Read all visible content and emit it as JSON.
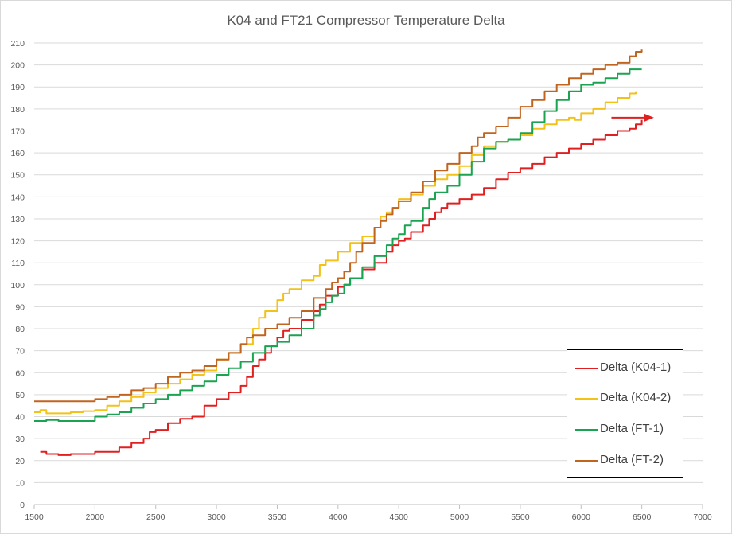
{
  "chart_data": {
    "type": "line",
    "title": "K04 and FT21 Compressor Temperature Delta",
    "xlabel": "",
    "ylabel": "",
    "xlim": [
      1500,
      7000
    ],
    "ylim": [
      0,
      210
    ],
    "x_ticks": [
      1500,
      2000,
      2500,
      3000,
      3500,
      4000,
      4500,
      5000,
      5500,
      6000,
      6500,
      7000
    ],
    "y_ticks": [
      0,
      10,
      20,
      30,
      40,
      50,
      60,
      70,
      80,
      90,
      100,
      110,
      120,
      130,
      140,
      150,
      160,
      170,
      180,
      190,
      200,
      210
    ],
    "grid": "horizontal",
    "legend_position": "bottom-right",
    "series": [
      {
        "name": "Delta (K04-1)",
        "color": "#e02020",
        "points": [
          [
            1550,
            24
          ],
          [
            1600,
            23
          ],
          [
            1700,
            22.5
          ],
          [
            1800,
            23
          ],
          [
            1900,
            23
          ],
          [
            2000,
            24
          ],
          [
            2100,
            24
          ],
          [
            2200,
            26
          ],
          [
            2300,
            28
          ],
          [
            2400,
            30
          ],
          [
            2450,
            33
          ],
          [
            2500,
            34
          ],
          [
            2600,
            37
          ],
          [
            2700,
            39
          ],
          [
            2800,
            40
          ],
          [
            2900,
            45
          ],
          [
            3000,
            48
          ],
          [
            3100,
            51
          ],
          [
            3200,
            54
          ],
          [
            3250,
            58
          ],
          [
            3300,
            63
          ],
          [
            3350,
            66
          ],
          [
            3400,
            69
          ],
          [
            3450,
            72
          ],
          [
            3500,
            76
          ],
          [
            3550,
            79
          ],
          [
            3600,
            80
          ],
          [
            3700,
            84
          ],
          [
            3800,
            88
          ],
          [
            3850,
            91
          ],
          [
            3900,
            95
          ],
          [
            4000,
            99
          ],
          [
            4050,
            100
          ],
          [
            4100,
            103
          ],
          [
            4200,
            107
          ],
          [
            4300,
            110
          ],
          [
            4400,
            115
          ],
          [
            4450,
            118
          ],
          [
            4500,
            120
          ],
          [
            4550,
            121
          ],
          [
            4600,
            124
          ],
          [
            4700,
            127
          ],
          [
            4750,
            130
          ],
          [
            4800,
            133
          ],
          [
            4850,
            135
          ],
          [
            4900,
            137
          ],
          [
            5000,
            139
          ],
          [
            5100,
            141
          ],
          [
            5200,
            144
          ],
          [
            5300,
            148
          ],
          [
            5400,
            151
          ],
          [
            5500,
            153
          ],
          [
            5600,
            155
          ],
          [
            5700,
            158
          ],
          [
            5800,
            160
          ],
          [
            5900,
            162
          ],
          [
            6000,
            164
          ],
          [
            6100,
            166
          ],
          [
            6200,
            168
          ],
          [
            6300,
            170
          ],
          [
            6400,
            171
          ],
          [
            6450,
            173
          ],
          [
            6500,
            175
          ]
        ]
      },
      {
        "name": "Delta (K04-2)",
        "color": "#f2c218",
        "points": [
          [
            1500,
            42
          ],
          [
            1550,
            43
          ],
          [
            1600,
            41.5
          ],
          [
            1700,
            41.5
          ],
          [
            1800,
            42
          ],
          [
            1900,
            42.5
          ],
          [
            2000,
            43
          ],
          [
            2100,
            45
          ],
          [
            2200,
            47
          ],
          [
            2300,
            49
          ],
          [
            2400,
            51
          ],
          [
            2500,
            53
          ],
          [
            2600,
            55
          ],
          [
            2700,
            57
          ],
          [
            2800,
            59
          ],
          [
            2900,
            61
          ],
          [
            3000,
            66
          ],
          [
            3100,
            69
          ],
          [
            3200,
            73
          ],
          [
            3300,
            80
          ],
          [
            3350,
            85
          ],
          [
            3400,
            88
          ],
          [
            3500,
            93
          ],
          [
            3550,
            96
          ],
          [
            3600,
            98
          ],
          [
            3700,
            102
          ],
          [
            3800,
            104
          ],
          [
            3850,
            109
          ],
          [
            3900,
            111
          ],
          [
            4000,
            115
          ],
          [
            4100,
            119
          ],
          [
            4200,
            122
          ],
          [
            4300,
            126
          ],
          [
            4350,
            131
          ],
          [
            4400,
            133
          ],
          [
            4450,
            135
          ],
          [
            4500,
            139
          ],
          [
            4600,
            141
          ],
          [
            4700,
            145
          ],
          [
            4800,
            148
          ],
          [
            4900,
            150
          ],
          [
            5000,
            154
          ],
          [
            5100,
            159
          ],
          [
            5200,
            163
          ],
          [
            5300,
            165
          ],
          [
            5400,
            166
          ],
          [
            5500,
            168
          ],
          [
            5600,
            171
          ],
          [
            5700,
            173
          ],
          [
            5800,
            175
          ],
          [
            5900,
            176
          ],
          [
            5950,
            175
          ],
          [
            6000,
            178
          ],
          [
            6100,
            180
          ],
          [
            6200,
            183
          ],
          [
            6300,
            185
          ],
          [
            6400,
            187
          ],
          [
            6450,
            188
          ]
        ]
      },
      {
        "name": "Delta (FT-1)",
        "color": "#1aa350",
        "points": [
          [
            1500,
            38
          ],
          [
            1600,
            38.5
          ],
          [
            1700,
            38
          ],
          [
            1800,
            38
          ],
          [
            1900,
            38
          ],
          [
            2000,
            40
          ],
          [
            2100,
            41
          ],
          [
            2200,
            42
          ],
          [
            2300,
            44
          ],
          [
            2400,
            46
          ],
          [
            2500,
            48
          ],
          [
            2600,
            50
          ],
          [
            2700,
            52
          ],
          [
            2800,
            54
          ],
          [
            2900,
            56
          ],
          [
            3000,
            59
          ],
          [
            3100,
            62
          ],
          [
            3200,
            65
          ],
          [
            3300,
            69
          ],
          [
            3400,
            72
          ],
          [
            3500,
            74
          ],
          [
            3600,
            77
          ],
          [
            3700,
            80
          ],
          [
            3800,
            86
          ],
          [
            3850,
            89
          ],
          [
            3900,
            92
          ],
          [
            3950,
            95
          ],
          [
            4000,
            96
          ],
          [
            4050,
            100
          ],
          [
            4100,
            103
          ],
          [
            4200,
            108
          ],
          [
            4300,
            113
          ],
          [
            4400,
            118
          ],
          [
            4450,
            121
          ],
          [
            4500,
            123
          ],
          [
            4550,
            127
          ],
          [
            4600,
            129
          ],
          [
            4700,
            135
          ],
          [
            4750,
            139
          ],
          [
            4800,
            142
          ],
          [
            4900,
            145
          ],
          [
            5000,
            150
          ],
          [
            5100,
            156
          ],
          [
            5200,
            162
          ],
          [
            5300,
            165
          ],
          [
            5400,
            166
          ],
          [
            5500,
            169
          ],
          [
            5600,
            174
          ],
          [
            5700,
            179
          ],
          [
            5800,
            184
          ],
          [
            5900,
            188
          ],
          [
            6000,
            191
          ],
          [
            6100,
            192
          ],
          [
            6200,
            194
          ],
          [
            6300,
            196
          ],
          [
            6400,
            198
          ],
          [
            6500,
            198
          ]
        ]
      },
      {
        "name": "Delta (FT-2)",
        "color": "#c0651f",
        "points": [
          [
            1500,
            47
          ],
          [
            1600,
            47
          ],
          [
            1700,
            47
          ],
          [
            1800,
            47
          ],
          [
            1900,
            47
          ],
          [
            2000,
            48
          ],
          [
            2100,
            49
          ],
          [
            2200,
            50
          ],
          [
            2300,
            52
          ],
          [
            2400,
            53
          ],
          [
            2500,
            55
          ],
          [
            2600,
            58
          ],
          [
            2700,
            60
          ],
          [
            2800,
            61
          ],
          [
            2900,
            63
          ],
          [
            3000,
            66
          ],
          [
            3100,
            69
          ],
          [
            3200,
            73
          ],
          [
            3250,
            76
          ],
          [
            3300,
            77
          ],
          [
            3400,
            80
          ],
          [
            3500,
            82
          ],
          [
            3600,
            85
          ],
          [
            3700,
            88
          ],
          [
            3800,
            94
          ],
          [
            3900,
            98
          ],
          [
            3950,
            101
          ],
          [
            4000,
            103
          ],
          [
            4050,
            106
          ],
          [
            4100,
            110
          ],
          [
            4150,
            115
          ],
          [
            4200,
            119
          ],
          [
            4300,
            126
          ],
          [
            4350,
            129
          ],
          [
            4400,
            132
          ],
          [
            4450,
            135
          ],
          [
            4500,
            138
          ],
          [
            4600,
            142
          ],
          [
            4700,
            147
          ],
          [
            4800,
            152
          ],
          [
            4900,
            155
          ],
          [
            5000,
            160
          ],
          [
            5100,
            163
          ],
          [
            5150,
            167
          ],
          [
            5200,
            169
          ],
          [
            5300,
            172
          ],
          [
            5400,
            176
          ],
          [
            5500,
            181
          ],
          [
            5600,
            184
          ],
          [
            5700,
            188
          ],
          [
            5800,
            191
          ],
          [
            5900,
            194
          ],
          [
            6000,
            196
          ],
          [
            6100,
            198
          ],
          [
            6200,
            200
          ],
          [
            6300,
            201
          ],
          [
            6400,
            204
          ],
          [
            6450,
            206
          ],
          [
            6500,
            207
          ]
        ]
      }
    ],
    "annotation": {
      "type": "arrow",
      "color": "#e02020",
      "from": [
        6250,
        176
      ],
      "to": [
        6600,
        176
      ]
    }
  }
}
